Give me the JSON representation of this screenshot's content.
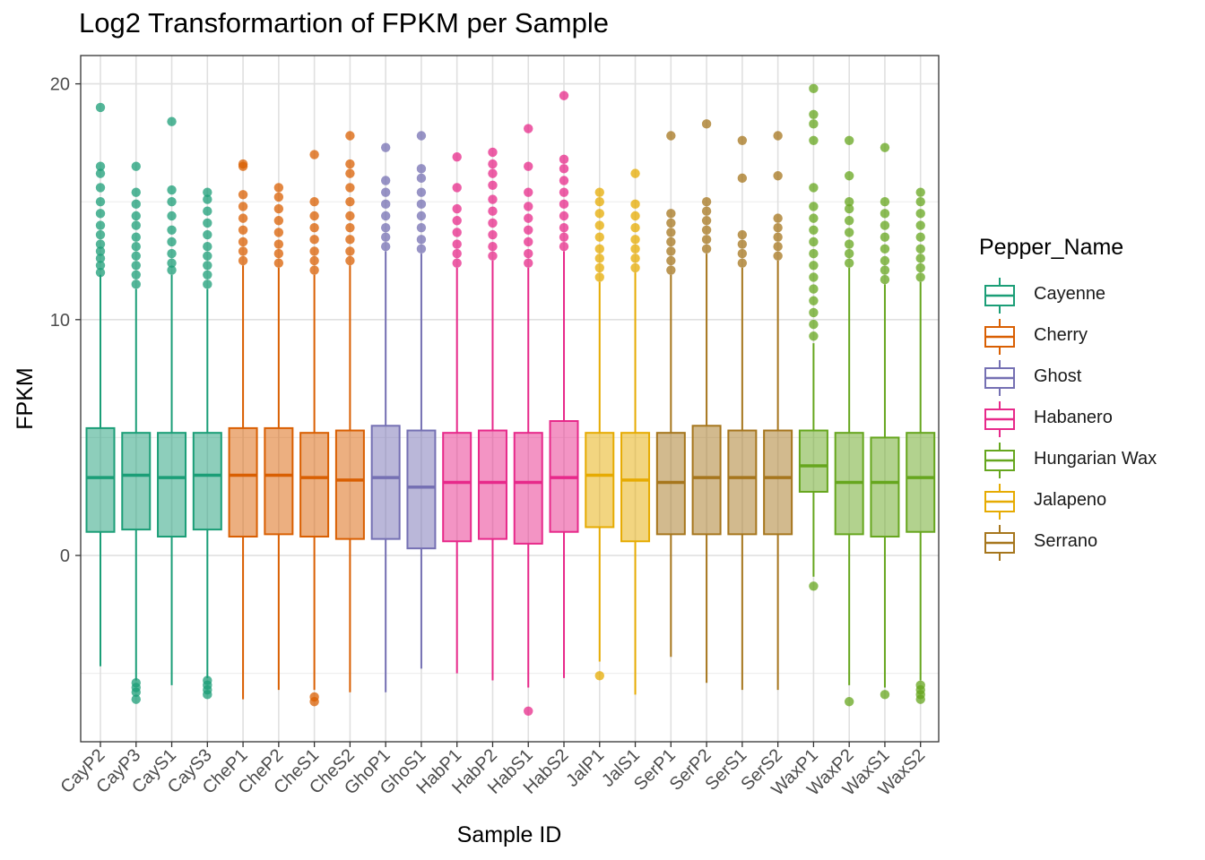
{
  "chart_data": {
    "type": "boxplot",
    "title": "Log2 Transformartion of FPKM per Sample",
    "xlabel": "Sample ID",
    "ylabel": "FPKM",
    "ylim": [
      -7.9,
      21.2
    ],
    "y_ticks": [
      0,
      10,
      20
    ],
    "grid": true,
    "legend": {
      "title": "Pepper_Name",
      "position": "right",
      "entries": [
        {
          "name": "Cayenne",
          "color": "#1B9E77"
        },
        {
          "name": "Cherry",
          "color": "#D95F02"
        },
        {
          "name": "Ghost",
          "color": "#7570B3"
        },
        {
          "name": "Habanero",
          "color": "#E7298A"
        },
        {
          "name": "Hungarian Wax",
          "color": "#66A61E"
        },
        {
          "name": "Jalapeno",
          "color": "#E6AB02"
        },
        {
          "name": "Serrano",
          "color": "#A6761D"
        }
      ]
    },
    "categories": [
      "CayP2",
      "CayP3",
      "CayS1",
      "CayS3",
      "CheP1",
      "CheP2",
      "CheS1",
      "CheS2",
      "GhoP1",
      "GhoS1",
      "HabP1",
      "HabP2",
      "HabS1",
      "HabS2",
      "JalP1",
      "JalS1",
      "SerP1",
      "SerP2",
      "SerS1",
      "SerS2",
      "WaxP1",
      "WaxP2",
      "WaxS1",
      "WaxS2"
    ],
    "boxes": [
      {
        "sample": "CayP2",
        "group": "Cayenne",
        "q1": 1.0,
        "median": 3.3,
        "q3": 5.4,
        "whisker_low": -4.7,
        "whisker_high": 11.9,
        "out_high": [
          12.0,
          12.3,
          12.6,
          12.9,
          13.2,
          13.6,
          14.0,
          14.5,
          15.0,
          15.6,
          16.2,
          16.5,
          19.0
        ],
        "out_low": []
      },
      {
        "sample": "CayP3",
        "group": "Cayenne",
        "q1": 1.1,
        "median": 3.4,
        "q3": 5.2,
        "whisker_low": -5.3,
        "whisker_high": 11.3,
        "out_high": [
          11.5,
          11.9,
          12.3,
          12.7,
          13.1,
          13.5,
          14.0,
          14.4,
          14.9,
          15.4,
          16.5
        ],
        "out_low": [
          -5.4,
          -5.6,
          -5.8,
          -6.1
        ]
      },
      {
        "sample": "CayS1",
        "group": "Cayenne",
        "q1": 0.8,
        "median": 3.3,
        "q3": 5.2,
        "whisker_low": -5.5,
        "whisker_high": 11.9,
        "out_high": [
          12.1,
          12.4,
          12.8,
          13.3,
          13.8,
          14.4,
          15.0,
          15.5,
          18.4
        ],
        "out_low": []
      },
      {
        "sample": "CayS3",
        "group": "Cayenne",
        "q1": 1.1,
        "median": 3.4,
        "q3": 5.2,
        "whisker_low": -5.2,
        "whisker_high": 11.3,
        "out_high": [
          11.5,
          11.9,
          12.3,
          12.7,
          13.1,
          13.6,
          14.1,
          14.6,
          15.1,
          15.4
        ],
        "out_low": [
          -5.3,
          -5.5,
          -5.7,
          -5.9
        ]
      },
      {
        "sample": "CheP1",
        "group": "Cherry",
        "q1": 0.8,
        "median": 3.4,
        "q3": 5.4,
        "whisker_low": -6.1,
        "whisker_high": 12.3,
        "out_high": [
          12.5,
          12.9,
          13.3,
          13.8,
          14.3,
          14.8,
          15.3,
          16.5,
          16.6
        ],
        "out_low": []
      },
      {
        "sample": "CheP2",
        "group": "Cherry",
        "q1": 0.9,
        "median": 3.4,
        "q3": 5.4,
        "whisker_low": -5.7,
        "whisker_high": 12.2,
        "out_high": [
          12.4,
          12.8,
          13.2,
          13.7,
          14.2,
          14.7,
          15.2,
          15.6
        ],
        "out_low": []
      },
      {
        "sample": "CheS1",
        "group": "Cherry",
        "q1": 0.8,
        "median": 3.3,
        "q3": 5.2,
        "whisker_low": -5.7,
        "whisker_high": 11.9,
        "out_high": [
          12.1,
          12.5,
          12.9,
          13.4,
          13.9,
          14.4,
          15.0,
          17.0
        ],
        "out_low": [
          -6.0,
          -6.2
        ]
      },
      {
        "sample": "CheS2",
        "group": "Cherry",
        "q1": 0.7,
        "median": 3.2,
        "q3": 5.3,
        "whisker_low": -5.8,
        "whisker_high": 12.3,
        "out_high": [
          12.5,
          12.9,
          13.4,
          13.9,
          14.4,
          15.0,
          15.6,
          16.2,
          16.6,
          17.8
        ],
        "out_low": []
      },
      {
        "sample": "GhoP1",
        "group": "Ghost",
        "q1": 0.7,
        "median": 3.3,
        "q3": 5.5,
        "whisker_low": -5.8,
        "whisker_high": 12.9,
        "out_high": [
          13.1,
          13.5,
          13.9,
          14.4,
          14.9,
          15.4,
          15.9,
          17.3
        ],
        "out_low": []
      },
      {
        "sample": "GhoS1",
        "group": "Ghost",
        "q1": 0.3,
        "median": 2.9,
        "q3": 5.3,
        "whisker_low": -4.8,
        "whisker_high": 12.8,
        "out_high": [
          13.0,
          13.4,
          13.9,
          14.4,
          14.9,
          15.4,
          16.0,
          16.4,
          17.8
        ],
        "out_low": []
      },
      {
        "sample": "HabP1",
        "group": "Habanero",
        "q1": 0.6,
        "median": 3.1,
        "q3": 5.2,
        "whisker_low": -5.0,
        "whisker_high": 12.2,
        "out_high": [
          12.4,
          12.8,
          13.2,
          13.7,
          14.2,
          14.7,
          15.6,
          16.9
        ],
        "out_low": []
      },
      {
        "sample": "HabP2",
        "group": "Habanero",
        "q1": 0.7,
        "median": 3.1,
        "q3": 5.3,
        "whisker_low": -5.3,
        "whisker_high": 12.5,
        "out_high": [
          12.7,
          13.1,
          13.6,
          14.1,
          14.6,
          15.1,
          15.7,
          16.2,
          16.6,
          17.1
        ],
        "out_low": []
      },
      {
        "sample": "HabS1",
        "group": "Habanero",
        "q1": 0.5,
        "median": 3.1,
        "q3": 5.2,
        "whisker_low": -5.6,
        "whisker_high": 12.2,
        "out_high": [
          12.4,
          12.8,
          13.3,
          13.8,
          14.3,
          14.8,
          15.4,
          16.5,
          18.1
        ],
        "out_low": [
          -6.6
        ]
      },
      {
        "sample": "HabS2",
        "group": "Habanero",
        "q1": 1.0,
        "median": 3.3,
        "q3": 5.7,
        "whisker_low": -5.2,
        "whisker_high": 12.9,
        "out_high": [
          13.1,
          13.5,
          13.9,
          14.4,
          14.9,
          15.4,
          15.9,
          16.4,
          16.8,
          19.5
        ],
        "out_low": []
      },
      {
        "sample": "JalP1",
        "group": "Jalapeno",
        "q1": 1.2,
        "median": 3.4,
        "q3": 5.2,
        "whisker_low": -4.5,
        "whisker_high": 11.6,
        "out_high": [
          11.8,
          12.2,
          12.6,
          13.0,
          13.5,
          14.0,
          14.5,
          15.0,
          15.4
        ],
        "out_low": [
          -5.1
        ]
      },
      {
        "sample": "JalS1",
        "group": "Jalapeno",
        "q1": 0.6,
        "median": 3.2,
        "q3": 5.2,
        "whisker_low": -5.9,
        "whisker_high": 12.0,
        "out_high": [
          12.2,
          12.6,
          13.0,
          13.4,
          13.9,
          14.4,
          14.9,
          16.2
        ],
        "out_low": []
      },
      {
        "sample": "SerP1",
        "group": "Serrano",
        "q1": 0.9,
        "median": 3.1,
        "q3": 5.2,
        "whisker_low": -4.3,
        "whisker_high": 11.9,
        "out_high": [
          12.1,
          12.5,
          12.9,
          13.3,
          13.7,
          14.1,
          14.5,
          17.8
        ],
        "out_low": []
      },
      {
        "sample": "SerP2",
        "group": "Serrano",
        "q1": 0.9,
        "median": 3.3,
        "q3": 5.5,
        "whisker_low": -5.4,
        "whisker_high": 12.8,
        "out_high": [
          13.0,
          13.4,
          13.8,
          14.2,
          14.6,
          15.0,
          18.3
        ],
        "out_low": []
      },
      {
        "sample": "SerS1",
        "group": "Serrano",
        "q1": 0.9,
        "median": 3.3,
        "q3": 5.3,
        "whisker_low": -5.7,
        "whisker_high": 12.2,
        "out_high": [
          12.4,
          12.8,
          13.2,
          13.6,
          16.0,
          17.6
        ],
        "out_low": []
      },
      {
        "sample": "SerS2",
        "group": "Serrano",
        "q1": 0.9,
        "median": 3.3,
        "q3": 5.3,
        "whisker_low": -5.7,
        "whisker_high": 12.5,
        "out_high": [
          12.7,
          13.1,
          13.5,
          13.9,
          14.3,
          16.1,
          17.8
        ],
        "out_low": []
      },
      {
        "sample": "WaxP1",
        "group": "Hungarian Wax",
        "q1": 2.7,
        "median": 3.8,
        "q3": 5.3,
        "whisker_low": -0.9,
        "whisker_high": 9.0,
        "out_high": [
          9.3,
          9.8,
          10.3,
          10.8,
          11.3,
          11.8,
          12.3,
          12.8,
          13.3,
          13.8,
          14.3,
          14.8,
          15.6,
          17.6,
          18.3,
          18.7,
          19.8
        ],
        "out_low": [
          -1.3
        ]
      },
      {
        "sample": "WaxP2",
        "group": "Hungarian Wax",
        "q1": 0.9,
        "median": 3.1,
        "q3": 5.2,
        "whisker_low": -5.5,
        "whisker_high": 12.2,
        "out_high": [
          12.4,
          12.8,
          13.2,
          13.7,
          14.2,
          14.7,
          15.0,
          16.1,
          17.6
        ],
        "out_low": [
          -6.2
        ]
      },
      {
        "sample": "WaxS1",
        "group": "Hungarian Wax",
        "q1": 0.8,
        "median": 3.1,
        "q3": 5.0,
        "whisker_low": -5.6,
        "whisker_high": 11.5,
        "out_high": [
          11.7,
          12.1,
          12.5,
          13.0,
          13.5,
          14.0,
          14.5,
          15.0,
          17.3
        ],
        "out_low": [
          -5.9
        ]
      },
      {
        "sample": "WaxS2",
        "group": "Hungarian Wax",
        "q1": 1.0,
        "median": 3.3,
        "q3": 5.2,
        "whisker_low": -5.3,
        "whisker_high": 11.6,
        "out_high": [
          11.8,
          12.2,
          12.6,
          13.0,
          13.5,
          14.0,
          14.5,
          15.0,
          15.4
        ],
        "out_low": [
          -5.5,
          -5.7,
          -5.9,
          -6.1
        ]
      }
    ]
  }
}
